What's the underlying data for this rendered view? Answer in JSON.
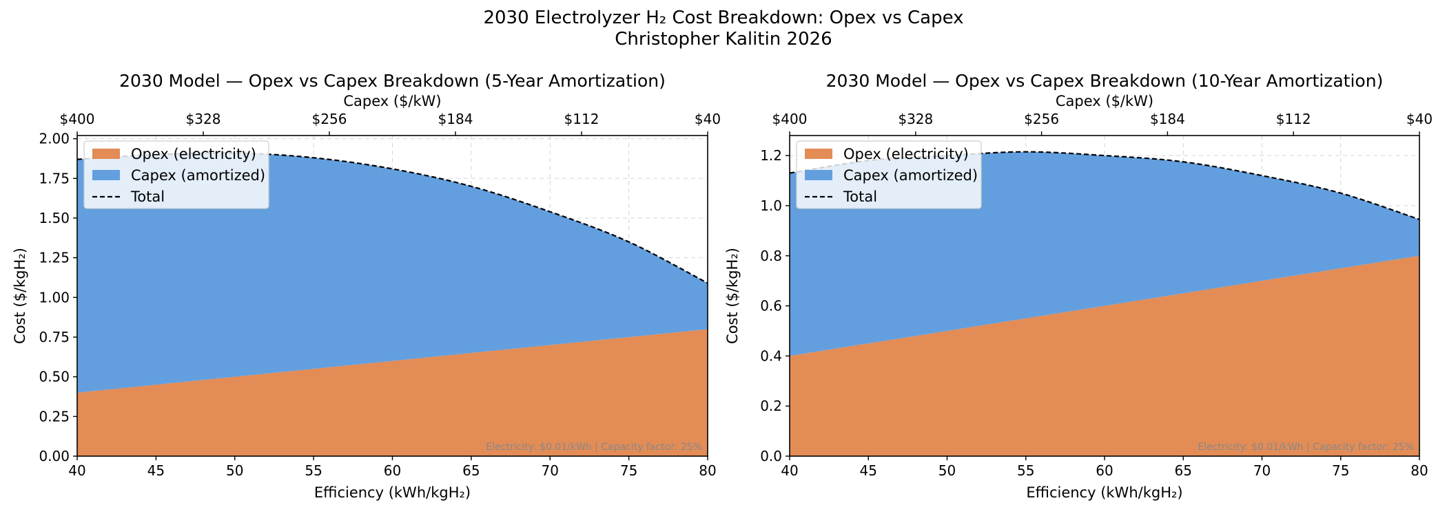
{
  "figure": {
    "title_line1": "2030 Electrolyzer H₂ Cost Breakdown: Opex vs Capex",
    "title_line2": "Christopher Kalitin 2026"
  },
  "colors": {
    "opex": "#e38c56",
    "capex": "#639fde",
    "total": "#000000"
  },
  "chart_data": [
    {
      "type": "area",
      "stacked": true,
      "title": "2030 Model — Opex vs Capex Breakdown (5-Year Amortization)",
      "xlabel": "Efficiency (kWh/kgH₂)",
      "ylabel": "Cost ($/kgH₂)",
      "secondary_xlabel": "Capex ($/kW)",
      "xlim": [
        40,
        80
      ],
      "ylim": [
        0,
        2.02
      ],
      "xticks": [
        40,
        45,
        50,
        55,
        60,
        65,
        70,
        75,
        80
      ],
      "yticks": [
        0,
        0.25,
        0.5,
        0.75,
        1.0,
        1.25,
        1.5,
        1.75,
        2.0
      ],
      "ytick_labels": [
        "0.00",
        "0.25",
        "0.50",
        "0.75",
        "1.00",
        "1.25",
        "1.50",
        "1.75",
        "2.00"
      ],
      "secondary_xticks": [
        40,
        48,
        56,
        64,
        72,
        80
      ],
      "secondary_xtick_labels": [
        "$400",
        "$328",
        "$256",
        "$184",
        "$112",
        "$40"
      ],
      "x": [
        40,
        45,
        50,
        55,
        60,
        65,
        70,
        75,
        80
      ],
      "series": [
        {
          "name": "Opex (electricity)",
          "values": [
            0.4,
            0.45,
            0.5,
            0.55,
            0.6,
            0.65,
            0.7,
            0.75,
            0.8
          ]
        },
        {
          "name": "Capex (amortized)",
          "values": [
            1.47,
            1.45,
            1.41,
            1.33,
            1.21,
            1.05,
            0.84,
            0.6,
            0.29
          ]
        },
        {
          "name": "Total",
          "values": [
            1.87,
            1.9,
            1.91,
            1.88,
            1.81,
            1.7,
            1.54,
            1.35,
            1.09
          ]
        }
      ],
      "annotation": "Electricity: $0.01/kWh  |  Capacity factor: 25%",
      "legend_position": "top-left"
    },
    {
      "type": "area",
      "stacked": true,
      "title": "2030 Model — Opex vs Capex Breakdown (10-Year Amortization)",
      "xlabel": "Efficiency (kWh/kgH₂)",
      "ylabel": "Cost ($/kgH₂)",
      "secondary_xlabel": "Capex ($/kW)",
      "xlim": [
        40,
        80
      ],
      "ylim": [
        0,
        1.28
      ],
      "xticks": [
        40,
        45,
        50,
        55,
        60,
        65,
        70,
        75,
        80
      ],
      "yticks": [
        0,
        0.2,
        0.4,
        0.6,
        0.8,
        1.0,
        1.2
      ],
      "ytick_labels": [
        "0.0",
        "0.2",
        "0.4",
        "0.6",
        "0.8",
        "1.0",
        "1.2"
      ],
      "secondary_xticks": [
        40,
        48,
        56,
        64,
        72,
        80
      ],
      "secondary_xtick_labels": [
        "$400",
        "$328",
        "$256",
        "$184",
        "$112",
        "$40"
      ],
      "x": [
        40,
        45,
        50,
        55,
        60,
        65,
        70,
        75,
        80
      ],
      "series": [
        {
          "name": "Opex (electricity)",
          "values": [
            0.4,
            0.45,
            0.5,
            0.55,
            0.6,
            0.65,
            0.7,
            0.75,
            0.8
          ]
        },
        {
          "name": "Capex (amortized)",
          "values": [
            0.73,
            0.73,
            0.7,
            0.665,
            0.6,
            0.525,
            0.42,
            0.3,
            0.145
          ]
        },
        {
          "name": "Total",
          "values": [
            1.13,
            1.18,
            1.2,
            1.215,
            1.2,
            1.175,
            1.12,
            1.05,
            0.945
          ]
        }
      ],
      "annotation": "Electricity: $0.01/kWh  |  Capacity factor: 25%",
      "legend_position": "top-left"
    }
  ]
}
